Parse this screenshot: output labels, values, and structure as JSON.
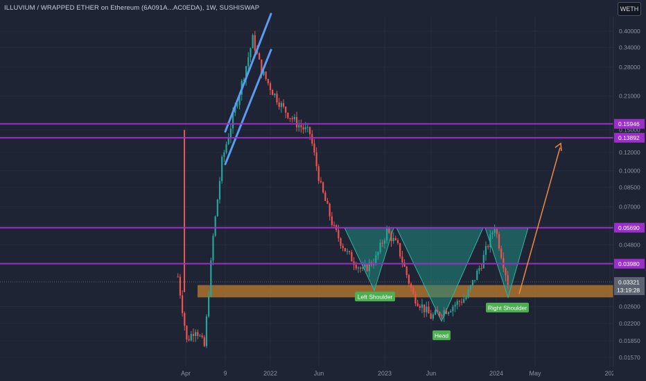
{
  "header": {
    "title": "ILLUVIUM / WRAPPED ETHER on Ethereum (6A091A...AC0EDA), 1W, SUSHISWAP",
    "quote_badge": "WETH"
  },
  "chart_data": {
    "type": "candlestick",
    "title": "ILLUVIUM / WRAPPED ETHER on Ethereum (6A091A...AC0EDA), 1W, SUSHISWAP",
    "y_scale": "log",
    "ylim": [
      0.0155,
      0.43
    ],
    "y_ticks": [
      "0.40000",
      "0.34000",
      "0.28000",
      "0.21000",
      "0.15000",
      "0.12000",
      "0.10000",
      "0.08500",
      "0.07000",
      "0.05800",
      "0.04800",
      "0.03980",
      "0.02600",
      "0.02200",
      "0.01850",
      "0.01570"
    ],
    "x_ticks": [
      "Apr",
      "9",
      "2022",
      "Jun",
      "2023",
      "Jun",
      "2024",
      "May",
      "202"
    ],
    "up_color": "#26a69a",
    "down_color": "#ef5350",
    "price_path": [
      {
        "week": "2021-03-15",
        "close": 0.035
      },
      {
        "week": "2021-04-12",
        "close": 0.0185
      },
      {
        "week": "2021-05-10",
        "close": 0.021
      },
      {
        "week": "2021-06-07",
        "close": 0.0175
      },
      {
        "week": "2021-07-05",
        "close": 0.052
      },
      {
        "week": "2021-08-02",
        "close": 0.11
      },
      {
        "week": "2021-09-06",
        "close": 0.17
      },
      {
        "week": "2021-10-11",
        "close": 0.26
      },
      {
        "week": "2021-11-08",
        "close": 0.37
      },
      {
        "week": "2021-12-06",
        "close": 0.27
      },
      {
        "week": "2022-01-10",
        "close": 0.22
      },
      {
        "week": "2022-02-14",
        "close": 0.185
      },
      {
        "week": "2022-03-28",
        "close": 0.16
      },
      {
        "week": "2022-05-09",
        "close": 0.145
      },
      {
        "week": "2022-06-13",
        "close": 0.085
      },
      {
        "week": "2022-07-25",
        "close": 0.056
      },
      {
        "week": "2022-09-05",
        "close": 0.044
      },
      {
        "week": "2022-10-24",
        "close": 0.037
      },
      {
        "week": "2022-12-05",
        "close": 0.042
      },
      {
        "week": "2023-01-09",
        "close": 0.055
      },
      {
        "week": "2023-02-13",
        "close": 0.047
      },
      {
        "week": "2023-04-03",
        "close": 0.029
      },
      {
        "week": "2023-05-29",
        "close": 0.0235
      },
      {
        "week": "2023-07-24",
        "close": 0.0255
      },
      {
        "week": "2023-09-18",
        "close": 0.0285
      },
      {
        "week": "2023-11-06",
        "close": 0.04
      },
      {
        "week": "2023-12-18",
        "close": 0.058
      },
      {
        "week": "2024-01-29",
        "close": 0.0332
      }
    ],
    "horizontal_levels": [
      {
        "value": 0.15946,
        "label": "0.15946"
      },
      {
        "value": 0.13892,
        "label": "0.13892"
      },
      {
        "value": 0.0569,
        "label": "0.05690"
      },
      {
        "value": 0.0398,
        "label": "0.03980"
      }
    ],
    "support_zone": {
      "low": 0.0285,
      "high": 0.0322
    },
    "current_price": {
      "value": 0.03321,
      "label": "0.03321",
      "countdown": "13:19:28"
    },
    "annotations": [
      "Left Shoulder",
      "Head",
      "Right Shoulder"
    ],
    "pattern": "inverse head and shoulders"
  },
  "colors": {
    "background": "#1e2434",
    "level_line": "#9b2fc9",
    "channel": "#5b9cf0",
    "zone": "#c47f2c",
    "pattern_fill": "#1f8a82",
    "label_green": "#4caf50",
    "projection": "#f08a40"
  }
}
